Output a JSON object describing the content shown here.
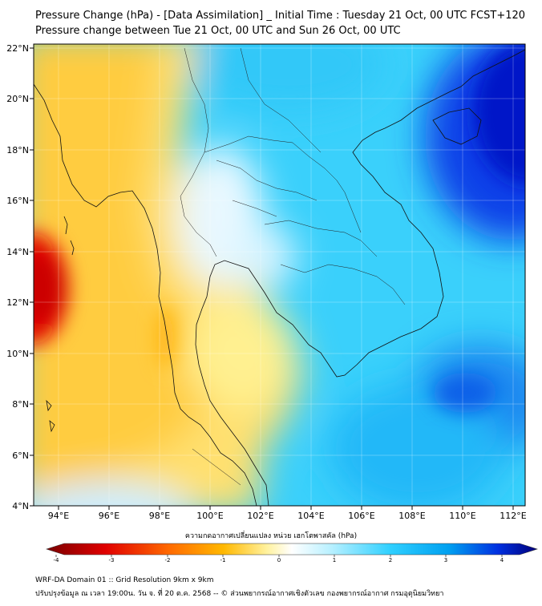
{
  "title": {
    "line1": "Pressure Change (hPa) - [Data Assimilation] _ Initial Time : Tuesday 21 Oct, 00 UTC FCST+120",
    "line2": "Pressure change between Tue 21 Oct, 00 UTC and Sun 26 Oct, 00 UTC"
  },
  "map": {
    "lon_range": [
      93,
      112.5
    ],
    "lat_range": [
      4,
      22.2
    ],
    "x_ticks": [
      "94°E",
      "96°E",
      "98°E",
      "100°E",
      "102°E",
      "104°E",
      "106°E",
      "108°E",
      "110°E",
      "112°E"
    ],
    "y_ticks": [
      "22°N",
      "20°N",
      "18°N",
      "16°N",
      "14°N",
      "12°N",
      "10°N",
      "8°N",
      "6°N",
      "4°N"
    ],
    "colors": {
      "strong_fall": "#d00000",
      "moderate_fall": "#f8a800",
      "slight_fall": "#fff8a0",
      "neutral": "#ffffff",
      "slight_rise": "#9fe8ff",
      "moderate_rise": "#10c8f8",
      "strong_rise": "#0018d0"
    }
  },
  "colorbar": {
    "title": "ความกดอากาศเปลี่ยนแปลง หน่วย เฮกโตพาสคัล (hPa)",
    "range": [
      -4,
      4
    ],
    "tick_labels": [
      "-4",
      "-3",
      "-2",
      "-1",
      "0",
      "1",
      "2",
      "3",
      "4"
    ]
  },
  "footer": {
    "line1": "WRF-DA Domain 01 :: Grid Resolution 9km x 9km",
    "line2": "ปรับปรุงข้อมูล ณ เวลา 19:00น. วัน จ. ที่ 20 ต.ค. 2568 -- © ส่วนพยากรณ์อากาศเชิงตัวเลข กองพยากรณ์อากาศ กรมอุตุนิยมวิทยา"
  }
}
